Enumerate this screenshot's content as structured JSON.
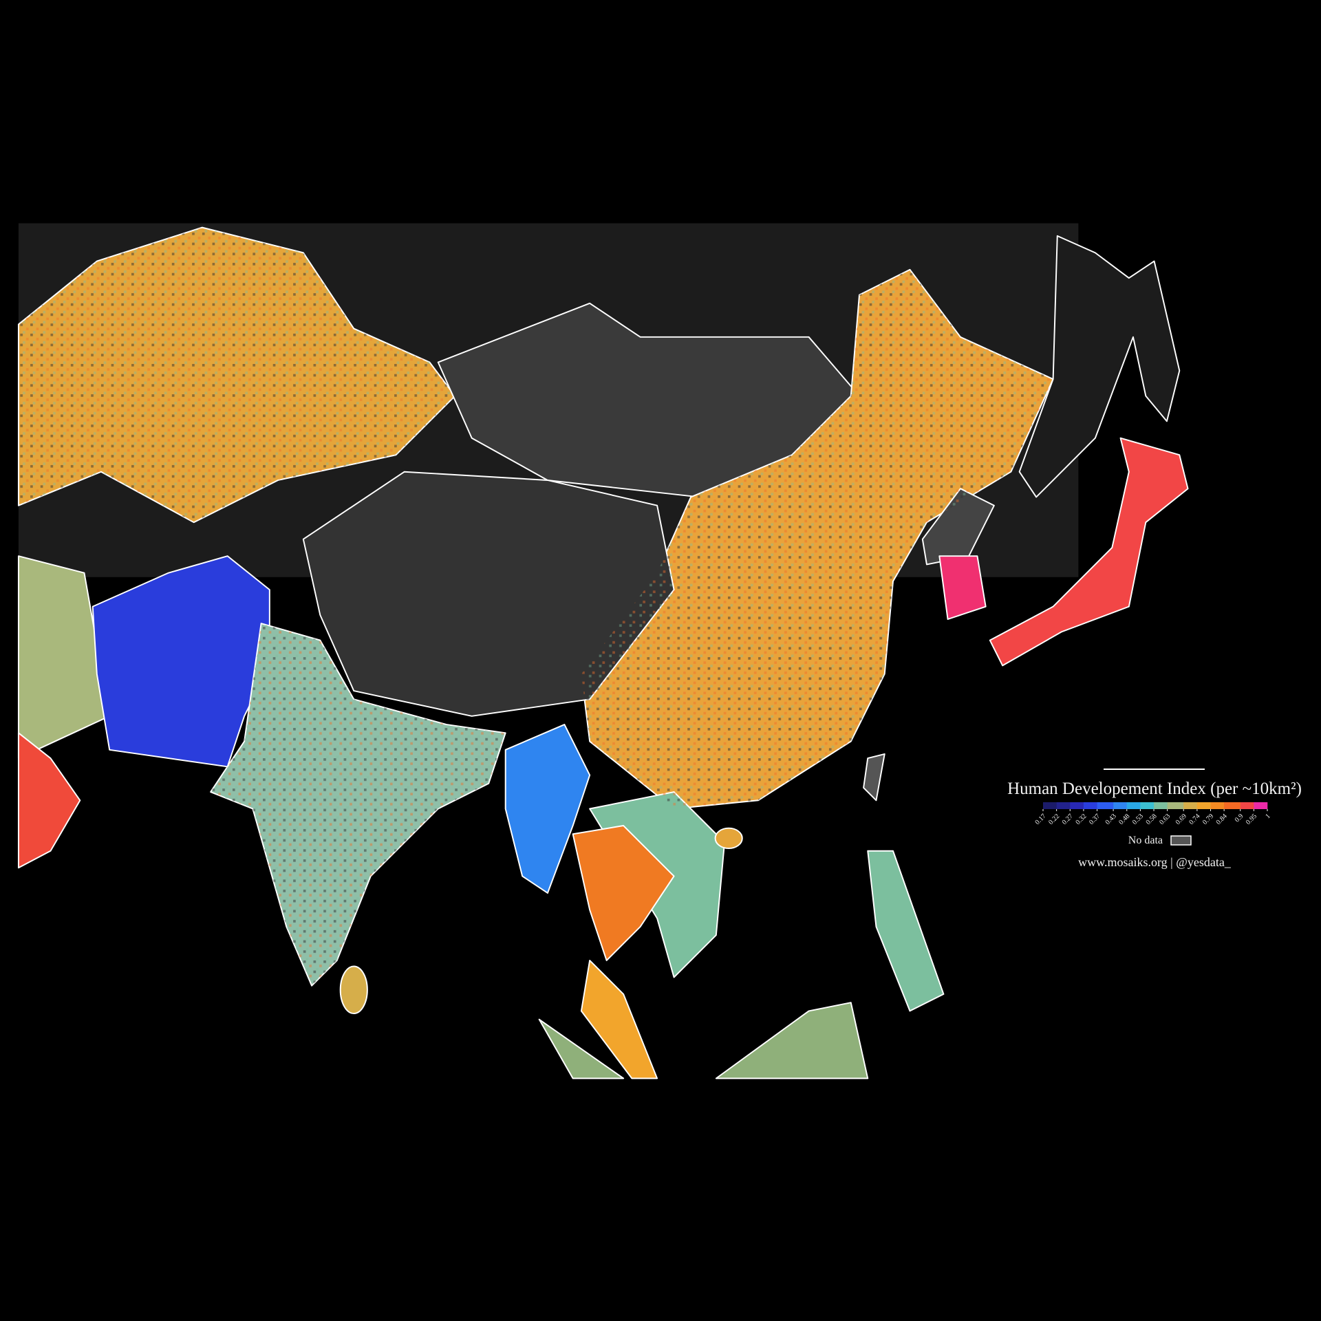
{
  "legend": {
    "title": "Human Developement Index (per ~10km²)",
    "ticks": [
      0.17,
      0.22,
      0.27,
      0.32,
      0.37,
      0.43,
      0.48,
      0.53,
      0.58,
      0.63,
      0.69,
      0.74,
      0.79,
      0.84,
      0.9,
      0.95,
      1
    ],
    "colors": [
      "#1b1b6a",
      "#22228c",
      "#2828b4",
      "#2a3ddc",
      "#2d5cf0",
      "#2f85f0",
      "#2aa8e6",
      "#3cc0d2",
      "#7cbf9e",
      "#a9b87c",
      "#d6ae4a",
      "#f2a52c",
      "#f58a22",
      "#f56a24",
      "#f24646",
      "#ec2aa8"
    ],
    "no_data_label": "No data",
    "no_data_color": "#555555"
  },
  "credit": "www.mosaiks.org | @yesdata_"
}
